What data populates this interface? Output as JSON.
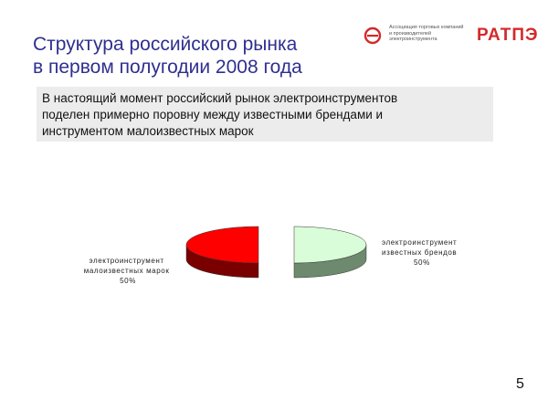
{
  "slide": {
    "title_lines": [
      "Структура российского рынка",
      "в  первом полугодии 2008 года"
    ],
    "callout_lines": [
      "В настоящий момент российский рынок электроинструментов",
      "поделен примерно поровну между известными брендами и",
      "инструментом малоизвестных марок"
    ],
    "page_number": "5"
  },
  "logo": {
    "text_lines": [
      "Ассоциация торговых  компаний",
      "и производителей",
      "электроинструмента"
    ],
    "wordmark": "РАТПЭ",
    "color": "#d42a2a"
  },
  "chart_data": {
    "type": "pie",
    "title": "",
    "style": "3d-exploded",
    "slices": [
      {
        "label_lines": [
          "электроинструмент",
          "известных брендов"
        ],
        "percent_label": "50%",
        "value": 50,
        "top_color": "#d9fcd9",
        "side_color": "#6e8a6e"
      },
      {
        "label_lines": [
          "электроинструмент",
          "малоизвестных марок"
        ],
        "percent_label": "50%",
        "value": 50,
        "top_color": "#ff0000",
        "side_color": "#7a0000"
      }
    ]
  }
}
